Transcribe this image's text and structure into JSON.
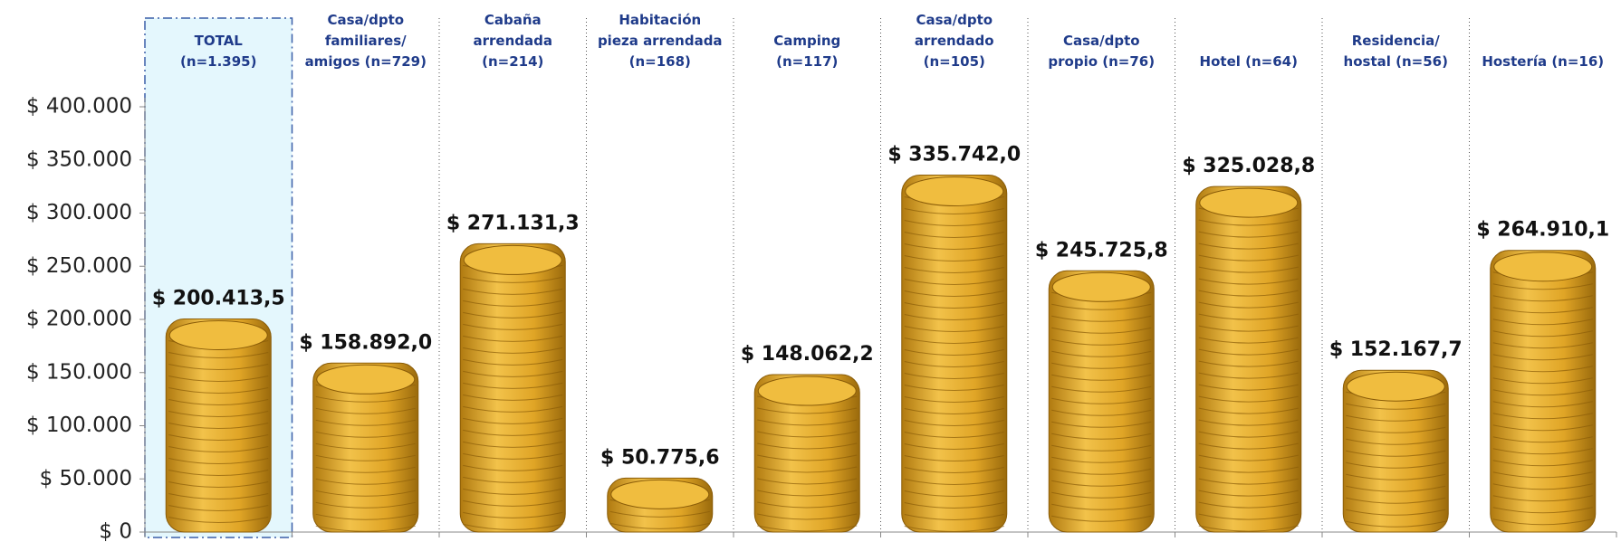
{
  "chart_data": {
    "type": "bar",
    "categories": [
      "TOTAL\n(n=1.395)",
      "Casa/dpto\nfamiliares/\namigos (n=729)",
      "Cabaña\narrendada\n(n=214)",
      "Habitación\npieza arrendada\n(n=168)",
      "Camping\n(n=117)",
      "Casa/dpto\narrendado\n(n=105)",
      "Casa/dpto\npropio (n=76)",
      "Hotel (n=64)",
      "Residencia/\nhostal (n=56)",
      "Hostería (n=16)"
    ],
    "values": [
      200413.5,
      158892.0,
      271131.3,
      50775.6,
      148062.2,
      335742.0,
      245725.8,
      325028.8,
      152167.7,
      264910.1
    ],
    "value_labels": [
      "$ 200.413,5",
      "$ 158.892,0",
      "$ 271.131,3",
      "$ 50.775,6",
      "$ 148.062,2",
      "$ 335.742,0",
      "$ 245.725,8",
      "$ 325.028,8",
      "$ 152.167,7",
      "$ 264.910,1"
    ],
    "color": "#e0a526",
    "ylim": [
      0,
      400000
    ],
    "yticks": [
      {
        "value": 0,
        "label": "$ 0"
      },
      {
        "value": 50000,
        "label": "$ 50.000"
      },
      {
        "value": 100000,
        "label": "$ 100.000"
      },
      {
        "value": 150000,
        "label": "$ 150.000"
      },
      {
        "value": 200000,
        "label": "$ 200.000"
      },
      {
        "value": 250000,
        "label": "$ 250.000"
      },
      {
        "value": 300000,
        "label": "$ 300.000"
      },
      {
        "value": 350000,
        "label": "$ 350.000"
      },
      {
        "value": 400000,
        "label": "$ 400.000"
      }
    ]
  }
}
